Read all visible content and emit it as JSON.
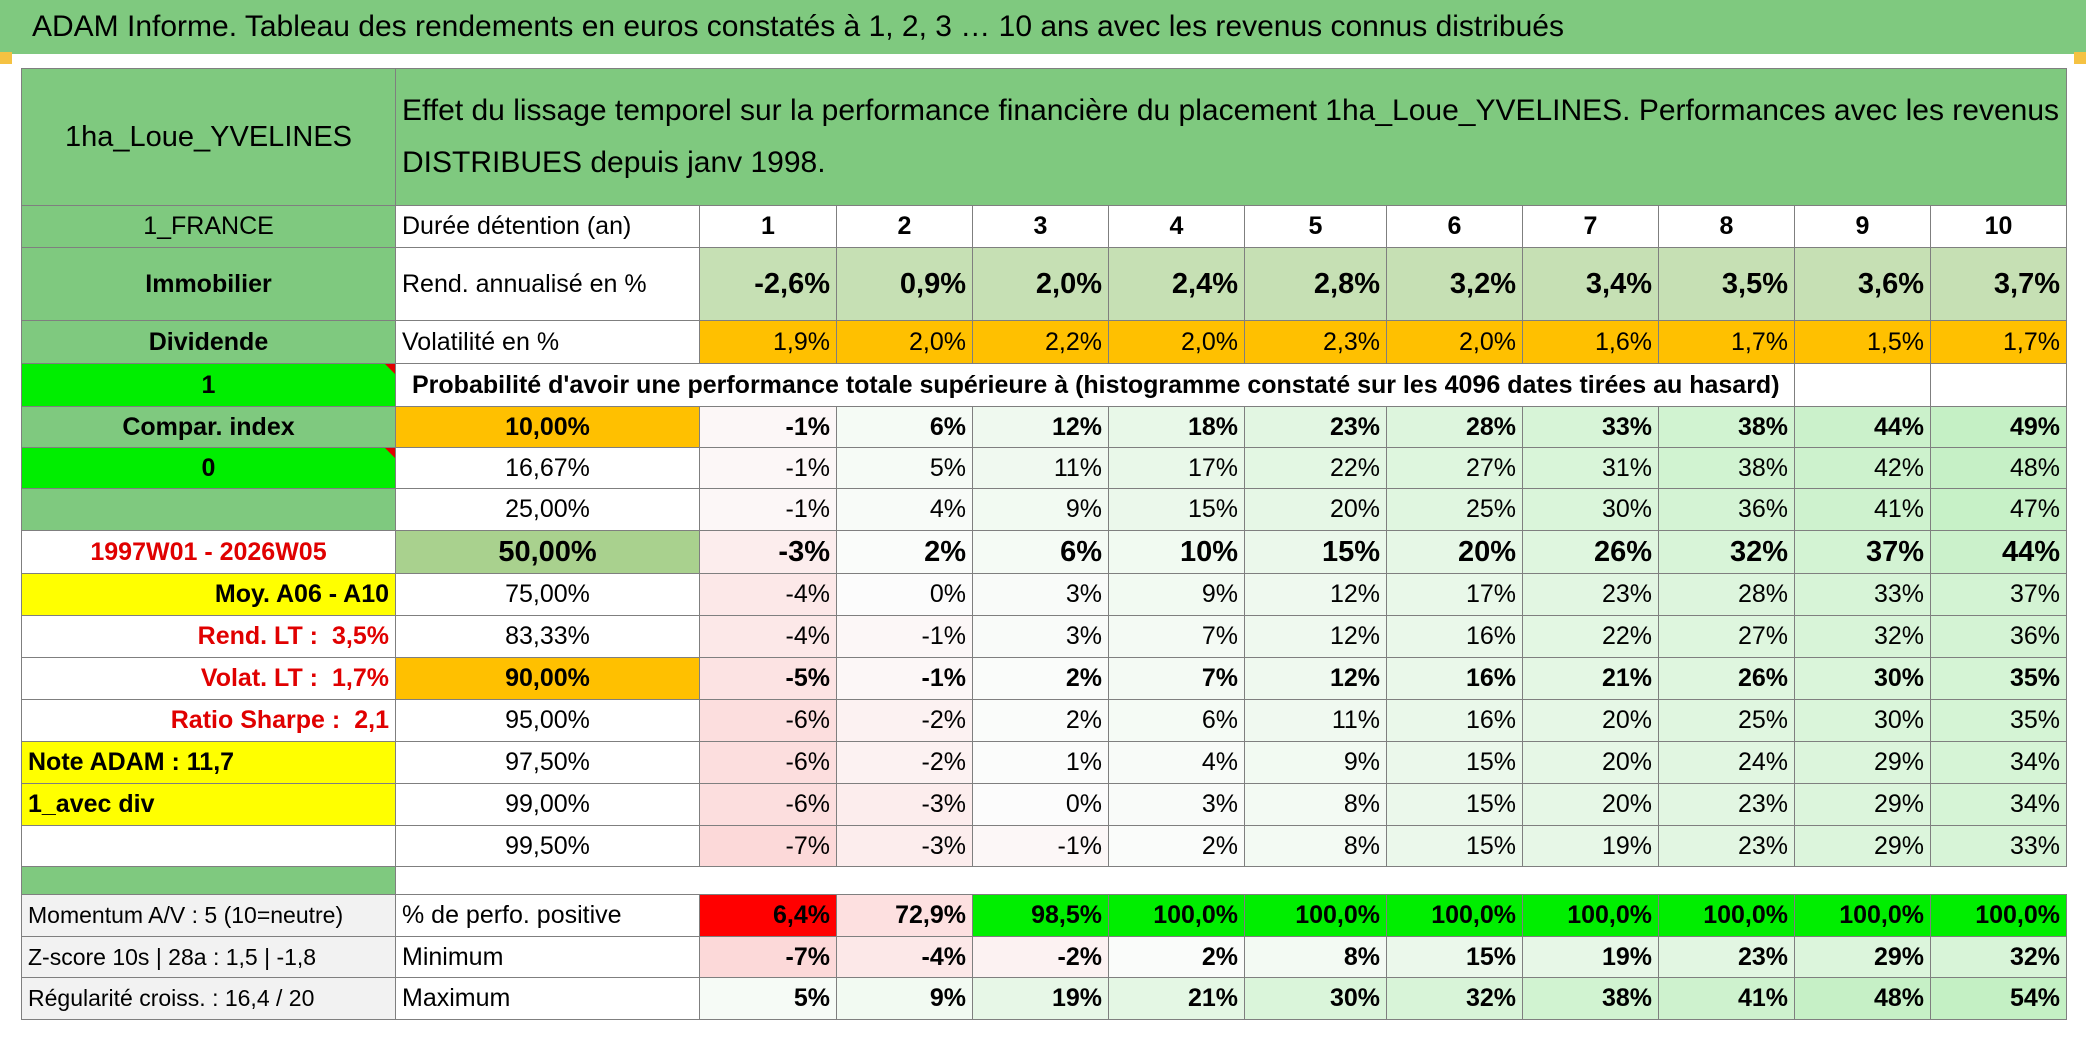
{
  "title": "ADAM Informe. Tableau des rendements en euros constatés à 1, 2, 3 … 10 ans avec les revenus connus distribués",
  "colors": {
    "header_green": "#7fc97f",
    "bright_green": "#00ee00",
    "yellow": "#ffff00",
    "orange": "#ffc000",
    "red_text": "#e00000",
    "min_red": "#ff0000"
  },
  "left": {
    "fund": "1ha_Loue_YVELINES",
    "country": "1_FRANCE",
    "asset_class": "Immobilier",
    "income_type": "Dividende",
    "selector_1": "1",
    "compar_index": "Compar. index",
    "selector_2": "0",
    "period": "1997W01 - 2026W05",
    "moy": "Moy. A06 - A10",
    "rend_lt_label": "Rend. LT :",
    "rend_lt_value": "3,5%",
    "volat_lt_label": "Volat. LT :",
    "volat_lt_value": "1,7%",
    "sharpe_label": "Ratio Sharpe :",
    "sharpe_value": "2,1",
    "note_adam": "Note ADAM : 11,7",
    "avec_div": "1_avec div",
    "momentum": "Momentum A/V : 5 (10=neutre)",
    "zscore": "Z-score 10s | 28a : 1,5 | -1,8",
    "regularite": "Régularité croiss. : 16,4 / 20"
  },
  "description": "Effet du lissage temporel sur la performance financière du placement 1ha_Loue_YVELINES. Performances avec les revenus DISTRIBUES depuis janv 1998.",
  "duree_label": "Durée détention (an)",
  "years": [
    "1",
    "2",
    "3",
    "4",
    "5",
    "6",
    "7",
    "8",
    "9",
    "10"
  ],
  "rend": {
    "label": "Rend. annualisé en %",
    "values": [
      "-2,6%",
      "0,9%",
      "2,0%",
      "2,4%",
      "2,8%",
      "3,2%",
      "3,4%",
      "3,5%",
      "3,6%",
      "3,7%"
    ]
  },
  "vol": {
    "label": "Volatilité en %",
    "values": [
      "1,9%",
      "2,0%",
      "2,2%",
      "2,0%",
      "2,3%",
      "2,0%",
      "1,6%",
      "1,7%",
      "1,5%",
      "1,7%"
    ]
  },
  "prob_header": "Probabilité d'avoir une performance totale supérieure à (histogramme constaté sur les 4096 dates tirées au hasard)",
  "prob_rows": [
    {
      "p": "10,00%",
      "values": [
        "-1%",
        "6%",
        "12%",
        "18%",
        "23%",
        "28%",
        "33%",
        "38%",
        "44%",
        "49%"
      ]
    },
    {
      "p": "16,67%",
      "values": [
        "-1%",
        "5%",
        "11%",
        "17%",
        "22%",
        "27%",
        "31%",
        "38%",
        "42%",
        "48%"
      ]
    },
    {
      "p": "25,00%",
      "values": [
        "-1%",
        "4%",
        "9%",
        "15%",
        "20%",
        "25%",
        "30%",
        "36%",
        "41%",
        "47%"
      ]
    },
    {
      "p": "50,00%",
      "values": [
        "-3%",
        "2%",
        "6%",
        "10%",
        "15%",
        "20%",
        "26%",
        "32%",
        "37%",
        "44%"
      ]
    },
    {
      "p": "75,00%",
      "values": [
        "-4%",
        "0%",
        "3%",
        "9%",
        "12%",
        "17%",
        "23%",
        "28%",
        "33%",
        "37%"
      ]
    },
    {
      "p": "83,33%",
      "values": [
        "-4%",
        "-1%",
        "3%",
        "7%",
        "12%",
        "16%",
        "22%",
        "27%",
        "32%",
        "36%"
      ]
    },
    {
      "p": "90,00%",
      "values": [
        "-5%",
        "-1%",
        "2%",
        "7%",
        "12%",
        "16%",
        "21%",
        "26%",
        "30%",
        "35%"
      ]
    },
    {
      "p": "95,00%",
      "values": [
        "-6%",
        "-2%",
        "2%",
        "6%",
        "11%",
        "16%",
        "20%",
        "25%",
        "30%",
        "35%"
      ]
    },
    {
      "p": "97,50%",
      "values": [
        "-6%",
        "-2%",
        "1%",
        "4%",
        "9%",
        "15%",
        "20%",
        "24%",
        "29%",
        "34%"
      ]
    },
    {
      "p": "99,00%",
      "values": [
        "-6%",
        "-3%",
        "0%",
        "3%",
        "8%",
        "15%",
        "20%",
        "23%",
        "29%",
        "34%"
      ]
    },
    {
      "p": "99,50%",
      "values": [
        "-7%",
        "-3%",
        "-1%",
        "2%",
        "8%",
        "15%",
        "19%",
        "23%",
        "29%",
        "33%"
      ]
    }
  ],
  "positive": {
    "label": "% de perfo. positive",
    "values": [
      "6,4%",
      "72,9%",
      "98,5%",
      "100,0%",
      "100,0%",
      "100,0%",
      "100,0%",
      "100,0%",
      "100,0%",
      "100,0%"
    ]
  },
  "minimum": {
    "label": "Minimum",
    "values": [
      "-7%",
      "-4%",
      "-2%",
      "2%",
      "8%",
      "15%",
      "19%",
      "23%",
      "29%",
      "32%"
    ]
  },
  "maximum": {
    "label": "Maximum",
    "values": [
      "5%",
      "9%",
      "19%",
      "21%",
      "30%",
      "32%",
      "38%",
      "41%",
      "48%",
      "54%"
    ]
  }
}
